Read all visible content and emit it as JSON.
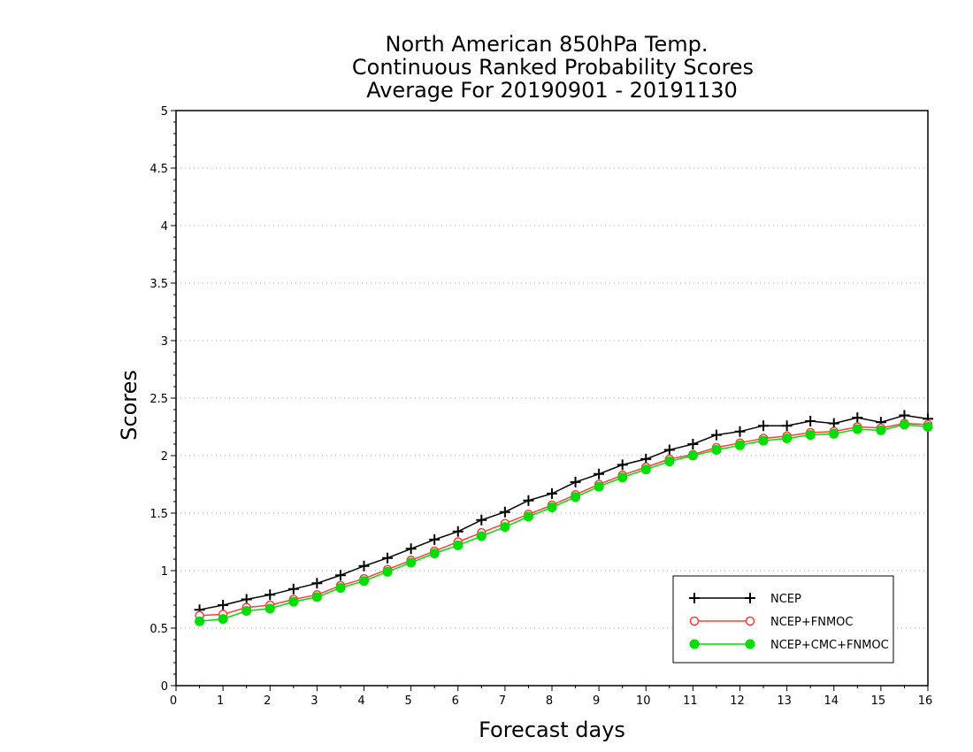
{
  "chart_data": {
    "type": "line",
    "title": [
      "North American 850hPa Temp.",
      "Continuous Ranked Probability Scores",
      "Average For 20190901 - 20191130"
    ],
    "xlabel": "Forecast days",
    "ylabel": "Scores",
    "xlim": [
      0,
      16
    ],
    "ylim": [
      0,
      5
    ],
    "x_ticks": [
      0,
      1,
      2,
      3,
      4,
      5,
      6,
      7,
      8,
      9,
      10,
      11,
      12,
      13,
      14,
      15,
      16
    ],
    "y_ticks": [
      0,
      0.5,
      1,
      1.5,
      2,
      2.5,
      3,
      3.5,
      4,
      4.5,
      5
    ],
    "x_tick_labels": [
      "0",
      "1",
      "2",
      "3",
      "4",
      "5",
      "6",
      "7",
      "8",
      "9",
      "10",
      "11",
      "12",
      "13",
      "14",
      "15",
      "16"
    ],
    "y_tick_labels": [
      "0",
      "0.5",
      "1",
      "1.5",
      "2",
      "2.5",
      "3",
      "3.5",
      "4",
      "4.5",
      "5"
    ],
    "grid": "horizontal dotted",
    "legend_position": "bottom-right",
    "x": [
      0.5,
      1,
      1.5,
      2,
      2.5,
      3,
      3.5,
      4,
      4.5,
      5,
      5.5,
      6,
      6.5,
      7,
      7.5,
      8,
      8.5,
      9,
      9.5,
      10,
      10.5,
      11,
      11.5,
      12,
      12.5,
      13,
      13.5,
      14,
      14.5,
      15,
      15.5,
      16
    ],
    "series": [
      {
        "name": "NCEP",
        "color": "#000000",
        "marker": "plus",
        "values": [
          0.66,
          0.7,
          0.75,
          0.79,
          0.84,
          0.89,
          0.96,
          1.04,
          1.11,
          1.19,
          1.27,
          1.34,
          1.44,
          1.51,
          1.61,
          1.67,
          1.77,
          1.84,
          1.92,
          1.97,
          2.05,
          2.1,
          2.18,
          2.21,
          2.26,
          2.26,
          2.3,
          2.28,
          2.33,
          2.29,
          2.35,
          2.32
        ]
      },
      {
        "name": "NCEP+FNMOC",
        "color": "#ff3b3b",
        "marker": "open-circle",
        "values": [
          0.61,
          0.62,
          0.68,
          0.7,
          0.75,
          0.79,
          0.87,
          0.93,
          1.01,
          1.09,
          1.17,
          1.25,
          1.33,
          1.41,
          1.49,
          1.57,
          1.66,
          1.75,
          1.83,
          1.9,
          1.97,
          2.01,
          2.07,
          2.11,
          2.15,
          2.17,
          2.2,
          2.21,
          2.25,
          2.24,
          2.28,
          2.27
        ]
      },
      {
        "name": "NCEP+CMC+FNMOC",
        "color": "#00dd00",
        "marker": "filled-circle",
        "values": [
          0.56,
          0.58,
          0.65,
          0.67,
          0.73,
          0.77,
          0.85,
          0.91,
          0.99,
          1.07,
          1.15,
          1.22,
          1.3,
          1.38,
          1.47,
          1.55,
          1.64,
          1.73,
          1.81,
          1.88,
          1.95,
          2.0,
          2.05,
          2.09,
          2.13,
          2.15,
          2.18,
          2.19,
          2.23,
          2.22,
          2.27,
          2.25
        ]
      }
    ]
  }
}
